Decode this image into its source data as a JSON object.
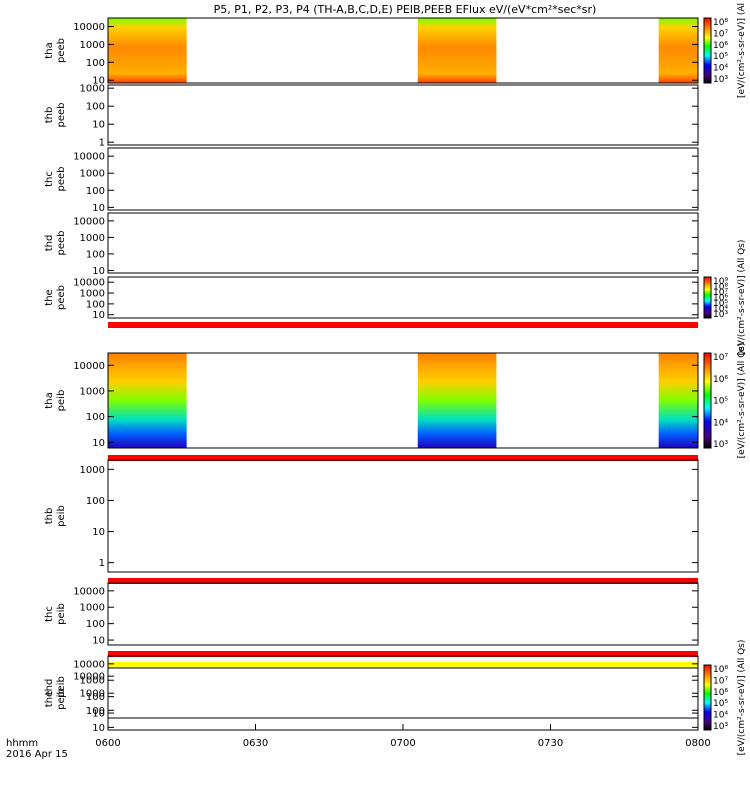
{
  "title": "P5, P1, P2, P3, P4 (TH-A,B,C,D,E) PEIB,PEEB EFlux eV/(eV*cm²*sec*sr)",
  "x_axis": {
    "label_lines": [
      "hhmm",
      "2016 Apr 15"
    ],
    "ticks": [
      "0600",
      "0630",
      "0700",
      "0730",
      "0800"
    ]
  },
  "colors": {
    "band_red": "#ff0000",
    "band_yellow": "#ffff00",
    "frame": "#000000"
  },
  "colorbars": [
    {
      "id": "cb1",
      "panel": 0,
      "label": "[eV/(cm²-s-sr-eV)] (Al",
      "ticks": [
        "10⁸",
        "10⁷",
        "10⁶",
        "10⁵",
        "10⁴",
        "10³"
      ]
    },
    {
      "id": "cb2",
      "panel": 4,
      "label": "[eV/(cm²-s-sr-eV)] (All Qs)",
      "ticks": [
        "10⁹",
        "10⁸",
        "10⁷",
        "10⁶",
        "10⁵",
        "10⁴",
        "10³"
      ]
    },
    {
      "id": "cb3",
      "panel": 5,
      "label": "[eV/(cm²-s-sr-eV)] (All Qs)",
      "ticks": [
        "10⁷",
        "10⁶",
        "10⁵",
        "10⁴",
        "10³"
      ]
    },
    {
      "id": "cb4",
      "panel": 9,
      "label": "[eV/(cm²-s-sr-eV)] (All Qs)",
      "ticks": [
        "10⁸",
        "10⁷",
        "10⁶",
        "10⁵",
        "10⁴",
        "10³"
      ]
    }
  ],
  "chart_data": {
    "type": "heatmap",
    "x_range": [
      "06:00",
      "08:00"
    ],
    "y_scale": "log",
    "panels": [
      {
        "probe": "tha",
        "product": "peeb",
        "yticks": [
          "10000",
          "1000",
          "100",
          "10"
        ],
        "ylim": [
          7,
          30000
        ],
        "data_intervals": [
          [
            "06:00",
            "06:16"
          ],
          [
            "07:03",
            "07:19"
          ],
          [
            "07:52",
            "08:00"
          ]
        ],
        "bands": []
      },
      {
        "probe": "thb",
        "product": "peeb",
        "yticks": [
          "1000",
          "100",
          "10",
          "1"
        ],
        "ylim": [
          0.7,
          1500
        ],
        "data_intervals": [],
        "bands": []
      },
      {
        "probe": "thc",
        "product": "peeb",
        "yticks": [
          "10000",
          "1000",
          "100",
          "10"
        ],
        "ylim": [
          7,
          30000
        ],
        "data_intervals": [],
        "bands": []
      },
      {
        "probe": "thd",
        "product": "peeb",
        "yticks": [
          "10000",
          "1000",
          "100",
          "10"
        ],
        "ylim": [
          7,
          30000
        ],
        "data_intervals": [],
        "bands": []
      },
      {
        "probe": "the",
        "product": "peeb",
        "yticks": [
          "10000",
          "1000",
          "100",
          "10"
        ],
        "ylim": [
          5,
          30000
        ],
        "data_intervals": [],
        "bands": [
          "red"
        ]
      },
      {
        "probe": "tha",
        "product": "peib",
        "yticks": [
          "10000",
          "1000",
          "100",
          "10"
        ],
        "ylim": [
          6,
          30000
        ],
        "data_intervals": [
          [
            "06:00",
            "06:16"
          ],
          [
            "07:03",
            "07:19"
          ],
          [
            "07:52",
            "08:00"
          ]
        ],
        "bands": [
          "red"
        ]
      },
      {
        "probe": "thb",
        "product": "peib",
        "yticks": [
          "1000",
          "100",
          "10",
          "1"
        ],
        "ylim": [
          0.5,
          2000
        ],
        "data_intervals": [],
        "bands": [
          "red"
        ]
      },
      {
        "probe": "thc",
        "product": "peib",
        "yticks": [
          "10000",
          "1000",
          "100",
          "10"
        ],
        "ylim": [
          5,
          30000
        ],
        "data_intervals": [],
        "bands": [
          "red"
        ]
      },
      {
        "probe": "thd",
        "product": "peib",
        "yticks": [
          "10000",
          "1000",
          "100",
          "10"
        ],
        "ylim": [
          5,
          30000
        ],
        "data_intervals": [],
        "bands": [
          "yellow"
        ]
      },
      {
        "probe": "the",
        "product": "peib",
        "yticks": [
          "10000",
          "1000",
          "100",
          "10"
        ],
        "ylim": [
          7,
          30000
        ],
        "data_intervals": [],
        "bands": []
      }
    ]
  }
}
